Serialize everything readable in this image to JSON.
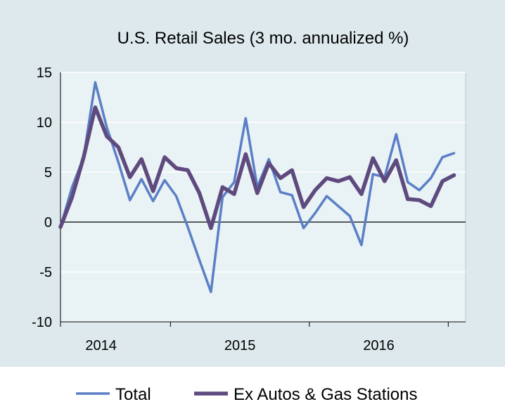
{
  "chart_data": {
    "type": "line",
    "title": "U.S. Retail Sales (3 mo. annualized %)",
    "xlabel": "",
    "ylabel": "",
    "ylim": [
      -10,
      15
    ],
    "yticks": [
      15,
      10,
      5,
      0,
      -5,
      -10
    ],
    "yticklabels": [
      "15",
      "10",
      "5",
      "0",
      "-5",
      "-10"
    ],
    "xlim": [
      0,
      35
    ],
    "xticks": [
      3.5,
      15.5,
      27.5
    ],
    "xticklabels": [
      "2014",
      "2015",
      "2016"
    ],
    "x": [
      0,
      1,
      2,
      3,
      4,
      5,
      6,
      7,
      8,
      9,
      10,
      11,
      12,
      13,
      14,
      15,
      16,
      17,
      18,
      19,
      20,
      21,
      22,
      23,
      24,
      25,
      26,
      27,
      28,
      29,
      30,
      31,
      32,
      33,
      34,
      35
    ],
    "grid": "horizontal",
    "legend_position": "bottom",
    "series": [
      {
        "name": "Total",
        "color": "#5b7fc7",
        "values": [
          -0.5,
          3.5,
          6.5,
          14.0,
          9.5,
          6.0,
          2.2,
          4.3,
          2.1,
          4.2,
          2.6,
          -0.5,
          -3.8,
          -7.0,
          2.5,
          4.0,
          10.4,
          3.5,
          6.3,
          3.0,
          2.7,
          -0.6,
          0.9,
          2.6,
          1.6,
          0.6,
          -2.3,
          4.8,
          4.5,
          8.8,
          4.0,
          3.2,
          4.4,
          6.5,
          6.9,
          null
        ]
      },
      {
        "name": "Ex Autos & Gas Stations",
        "color": "#5e4a7e",
        "values": [
          -0.5,
          2.5,
          6.5,
          11.5,
          8.6,
          7.5,
          4.5,
          6.3,
          3.1,
          6.5,
          5.4,
          5.2,
          2.9,
          -0.6,
          3.5,
          2.8,
          6.8,
          2.9,
          5.9,
          4.4,
          5.2,
          1.5,
          3.2,
          4.4,
          4.1,
          4.5,
          2.8,
          6.4,
          4.1,
          6.2,
          2.3,
          2.2,
          1.6,
          4.1,
          4.7,
          null
        ]
      }
    ]
  }
}
